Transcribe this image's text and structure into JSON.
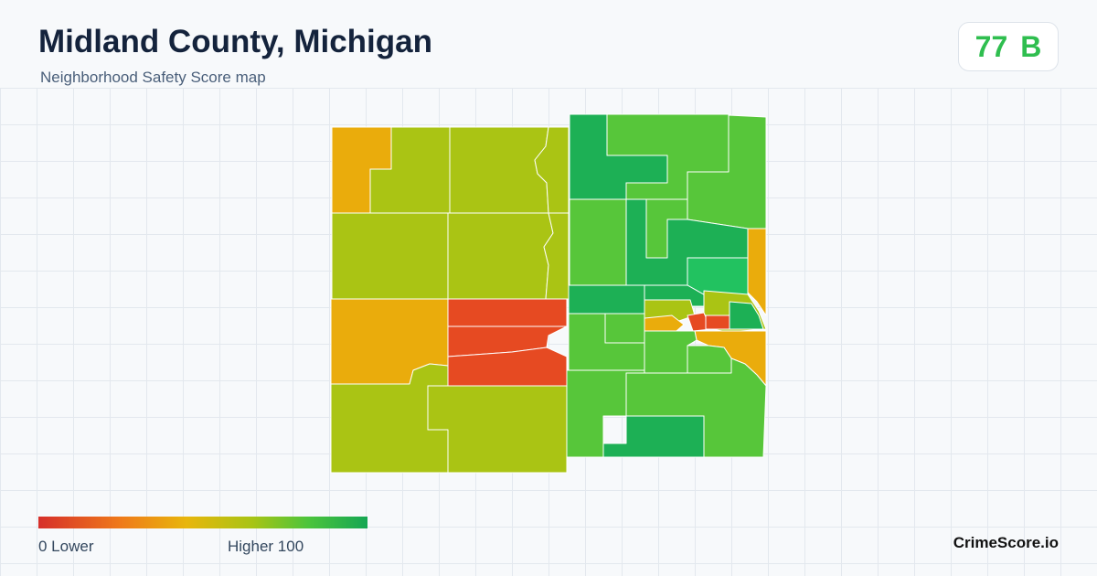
{
  "header": {
    "title": "Midland County, Michigan",
    "subtitle": "Neighborhood Safety Score map"
  },
  "score": {
    "value": "77",
    "grade": "B",
    "color": "#2fbe4f"
  },
  "legend": {
    "min_label": "0  Lower",
    "max_label": "Higher  100",
    "colors": [
      "#d62f2a",
      "#ef7a1a",
      "#e8b60c",
      "#a8c414",
      "#4cc43c",
      "#15a653"
    ]
  },
  "brand": "CrimeScore.io",
  "map": {
    "region_colors": {
      "lower": "#e64a22",
      "low": "#eaac0c",
      "medium": "#aac414",
      "high": "#57c63a",
      "higher": "#1db055",
      "highest": "#22c260"
    }
  }
}
